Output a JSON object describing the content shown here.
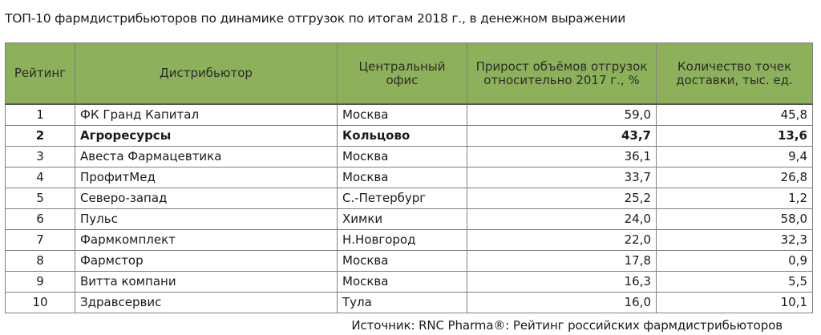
{
  "title": "ТОП-10 фармдистрибьюторов по динамике отгрузок по итогам 2018 г., в денежном выражении",
  "headers": {
    "rank": "Рейтинг",
    "distributor": "Дистрибьютор",
    "office": "Центральный офис",
    "growth": "Прирост объёмов отгрузок относительно 2017 г., %",
    "points": "Количество точек доставки, тыс. ед."
  },
  "rows": [
    {
      "rank": "1",
      "name": "ФК Гранд Капитал",
      "office": "Москва",
      "growth": "59,0",
      "points": "45,8",
      "highlight": false
    },
    {
      "rank": "2",
      "name": "Агроресурсы",
      "office": "Кольцово",
      "growth": "43,7",
      "points": "13,6",
      "highlight": true
    },
    {
      "rank": "3",
      "name": "Авеста Фармацевтика",
      "office": "Москва",
      "growth": "36,1",
      "points": "9,4",
      "highlight": false
    },
    {
      "rank": "4",
      "name": "ПрофитМед",
      "office": "Москва",
      "growth": "33,7",
      "points": "26,8",
      "highlight": false
    },
    {
      "rank": "5",
      "name": "Северо-запад",
      "office": "С.-Петербург",
      "growth": "25,2",
      "points": "1,2",
      "highlight": false
    },
    {
      "rank": "6",
      "name": "Пульс",
      "office": "Химки",
      "growth": "24,0",
      "points": "58,0",
      "highlight": false
    },
    {
      "rank": "7",
      "name": "Фармкомплект",
      "office": "Н.Новгород",
      "growth": "22,0",
      "points": "32,3",
      "highlight": false
    },
    {
      "rank": "8",
      "name": "Фармстор",
      "office": "Москва",
      "growth": "17,8",
      "points": "0,9",
      "highlight": false
    },
    {
      "rank": "9",
      "name": "Витта компани",
      "office": "Москва",
      "growth": "16,3",
      "points": "5,5",
      "highlight": false
    },
    {
      "rank": "10",
      "name": "Здравсервис",
      "office": "Тула",
      "growth": "16,0",
      "points": "10,1",
      "highlight": false
    }
  ],
  "source": "Источник: RNC Pharma®: Рейтинг российских фармдистрибьюторов",
  "colors": {
    "header_bg": "#8db05a",
    "border": "#7f7f7f"
  }
}
